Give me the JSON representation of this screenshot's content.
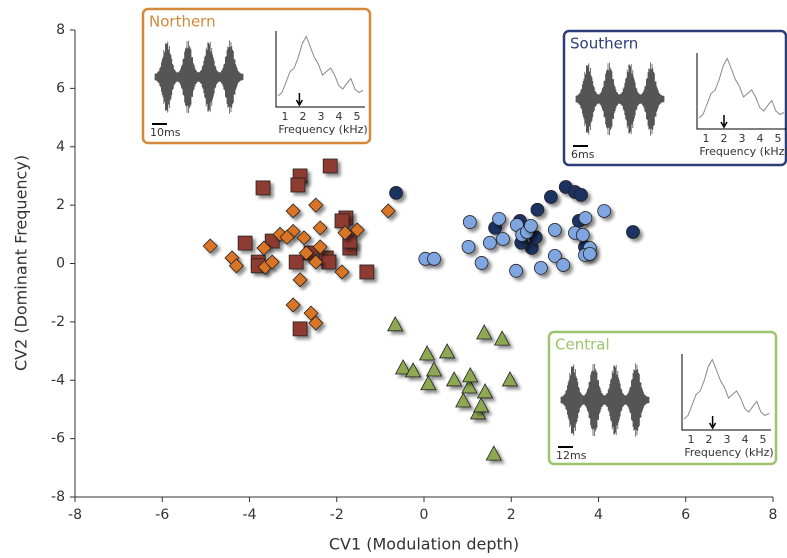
{
  "chart_data": {
    "type": "scatter",
    "xlabel": "CV1 (Modulation depth)",
    "ylabel": "CV2 (Dominant Frequency)",
    "xlim": [
      -8,
      8
    ],
    "ylim": [
      -8,
      8
    ],
    "xticks": [
      -8,
      -6,
      -4,
      -2,
      0,
      2,
      4,
      6,
      8
    ],
    "yticks": [
      -8,
      -6,
      -4,
      -2,
      0,
      2,
      4,
      6,
      8
    ],
    "series": [
      {
        "marker": "square",
        "color": "#8e3b30",
        "x": [
          -2.15,
          -3.69,
          -2.84,
          -2.89,
          -1.79,
          -1.88,
          -4.1,
          -3.48,
          -2.59,
          -2.24,
          -1.7,
          -1.7,
          -2.18,
          -3.8,
          -3.8,
          -2.93,
          -1.31,
          -2.84
        ],
        "y": [
          3.34,
          2.59,
          3.0,
          2.69,
          1.56,
          1.46,
          0.7,
          0.77,
          0.36,
          0.19,
          0.53,
          0.77,
          0.05,
          0.05,
          -0.08,
          0.05,
          -0.29,
          -2.24
        ]
      },
      {
        "marker": "diamond",
        "color": "#db7528",
        "x": [
          -4.9,
          -4.4,
          -4.3,
          -3.67,
          -3.64,
          -3.48,
          -3.3,
          -3.0,
          -3.0,
          -3.14,
          -2.75,
          -2.48,
          -2.38,
          -2.7,
          -2.48,
          -2.38,
          -2.84,
          -1.88,
          -1.53,
          -0.82,
          -3.0,
          -2.59,
          -2.48,
          -1.81
        ],
        "y": [
          0.6,
          0.19,
          -0.08,
          0.53,
          -0.12,
          0.05,
          1.0,
          1.1,
          1.8,
          0.9,
          0.88,
          2.0,
          1.22,
          0.36,
          0.05,
          0.57,
          -0.56,
          -0.29,
          1.15,
          1.8,
          -1.42,
          -1.7,
          -2.04,
          1.05
        ]
      },
      {
        "marker": "circle",
        "color": "#1e3360",
        "x": [
          -0.64,
          1.63,
          2.2,
          2.6,
          2.91,
          3.25,
          3.46,
          3.6,
          3.55,
          2.47,
          2.56,
          4.79,
          3.69,
          2.23
        ],
        "y": [
          2.42,
          1.22,
          1.46,
          1.84,
          2.28,
          2.62,
          2.45,
          2.35,
          1.46,
          0.53,
          0.9,
          1.08,
          0.57,
          0.71
        ]
      },
      {
        "marker": "circle",
        "color": "#80a6e2",
        "x": [
          1.05,
          1.02,
          1.32,
          1.51,
          1.81,
          1.72,
          2.13,
          2.25,
          2.36,
          2.11,
          2.68,
          3.0,
          3.19,
          3.0,
          3.46,
          3.64,
          3.8,
          3.69,
          4.13,
          3.7,
          2.45,
          0.03,
          0.23,
          3.8
        ],
        "y": [
          1.42,
          0.57,
          0.02,
          0.71,
          0.84,
          1.53,
          1.32,
          0.98,
          1.08,
          -0.25,
          -0.15,
          0.26,
          -0.05,
          1.15,
          1.05,
          0.98,
          0.53,
          0.29,
          1.8,
          1.56,
          1.29,
          0.16,
          0.16,
          0.33
        ]
      },
      {
        "marker": "triangle",
        "color": "#8ea752",
        "x": [
          -0.66,
          -0.48,
          -0.25,
          0.07,
          0.23,
          0.1,
          0.53,
          0.69,
          0.9,
          1.04,
          1.06,
          1.24,
          1.38,
          1.4,
          1.31,
          1.79,
          1.97,
          1.6
        ],
        "y": [
          -2.1,
          -3.58,
          -3.68,
          -3.1,
          -3.65,
          -4.12,
          -3.03,
          -3.99,
          -4.71,
          -4.23,
          -3.85,
          -5.12,
          -2.38,
          -4.4,
          -4.88,
          -2.59,
          -3.99,
          -6.53
        ]
      }
    ],
    "insets": [
      {
        "label": "Northern",
        "color": "#d3893a",
        "scale_label": "10ms",
        "xlabel": "Frequency (kHz)",
        "xticks": [
          1,
          2,
          3,
          4,
          5
        ]
      },
      {
        "label": "Southern",
        "color": "#2c3d78",
        "scale_label": "6ms",
        "xlabel": "Frequency (kHz)",
        "xticks": [
          1,
          2,
          3,
          4,
          5
        ]
      },
      {
        "label": "Central",
        "color": "#9cc46b",
        "scale_label": "12ms",
        "xlabel": "Frequency (kHz)",
        "xticks": [
          1,
          2,
          3,
          4,
          5
        ]
      }
    ]
  }
}
